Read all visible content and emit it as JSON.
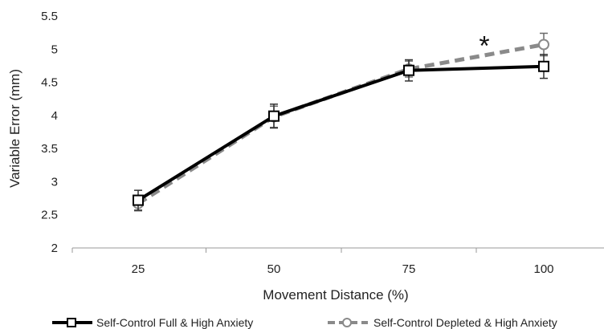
{
  "chart_data": {
    "type": "line",
    "x": [
      25,
      50,
      75,
      100
    ],
    "xlabel": "Movement Distance (%)",
    "ylabel": "Variable Error (mm)",
    "ylim": [
      2,
      5.5
    ],
    "yticks": [
      2,
      2.5,
      3,
      3.5,
      4,
      4.5,
      5,
      5.5
    ],
    "ytick_labels": [
      "2",
      "2.5",
      "3",
      "3.5",
      "4",
      "4.5",
      "5",
      "5.5"
    ],
    "xtick_labels": [
      "25",
      "50",
      "75",
      "100"
    ],
    "grid": false,
    "legend_position": "bottom",
    "series": [
      {
        "name": "Self-Control Full & High Anxiety",
        "values": [
          2.72,
          3.99,
          4.68,
          4.74
        ],
        "errors": [
          0.15,
          0.18,
          0.16,
          0.18
        ],
        "color": "#000000",
        "line_style": "solid",
        "marker": "square"
      },
      {
        "name": "Self-Control Depleted & High Anxiety",
        "values": [
          2.67,
          3.98,
          4.7,
          5.07
        ],
        "errors": [
          0.11,
          0.16,
          0.12,
          0.17
        ],
        "color": "#8a8a8a",
        "line_style": "dashed",
        "marker": "circle"
      }
    ],
    "annotations": [
      {
        "text": "*",
        "x": 89,
        "y": 5.18
      }
    ]
  }
}
